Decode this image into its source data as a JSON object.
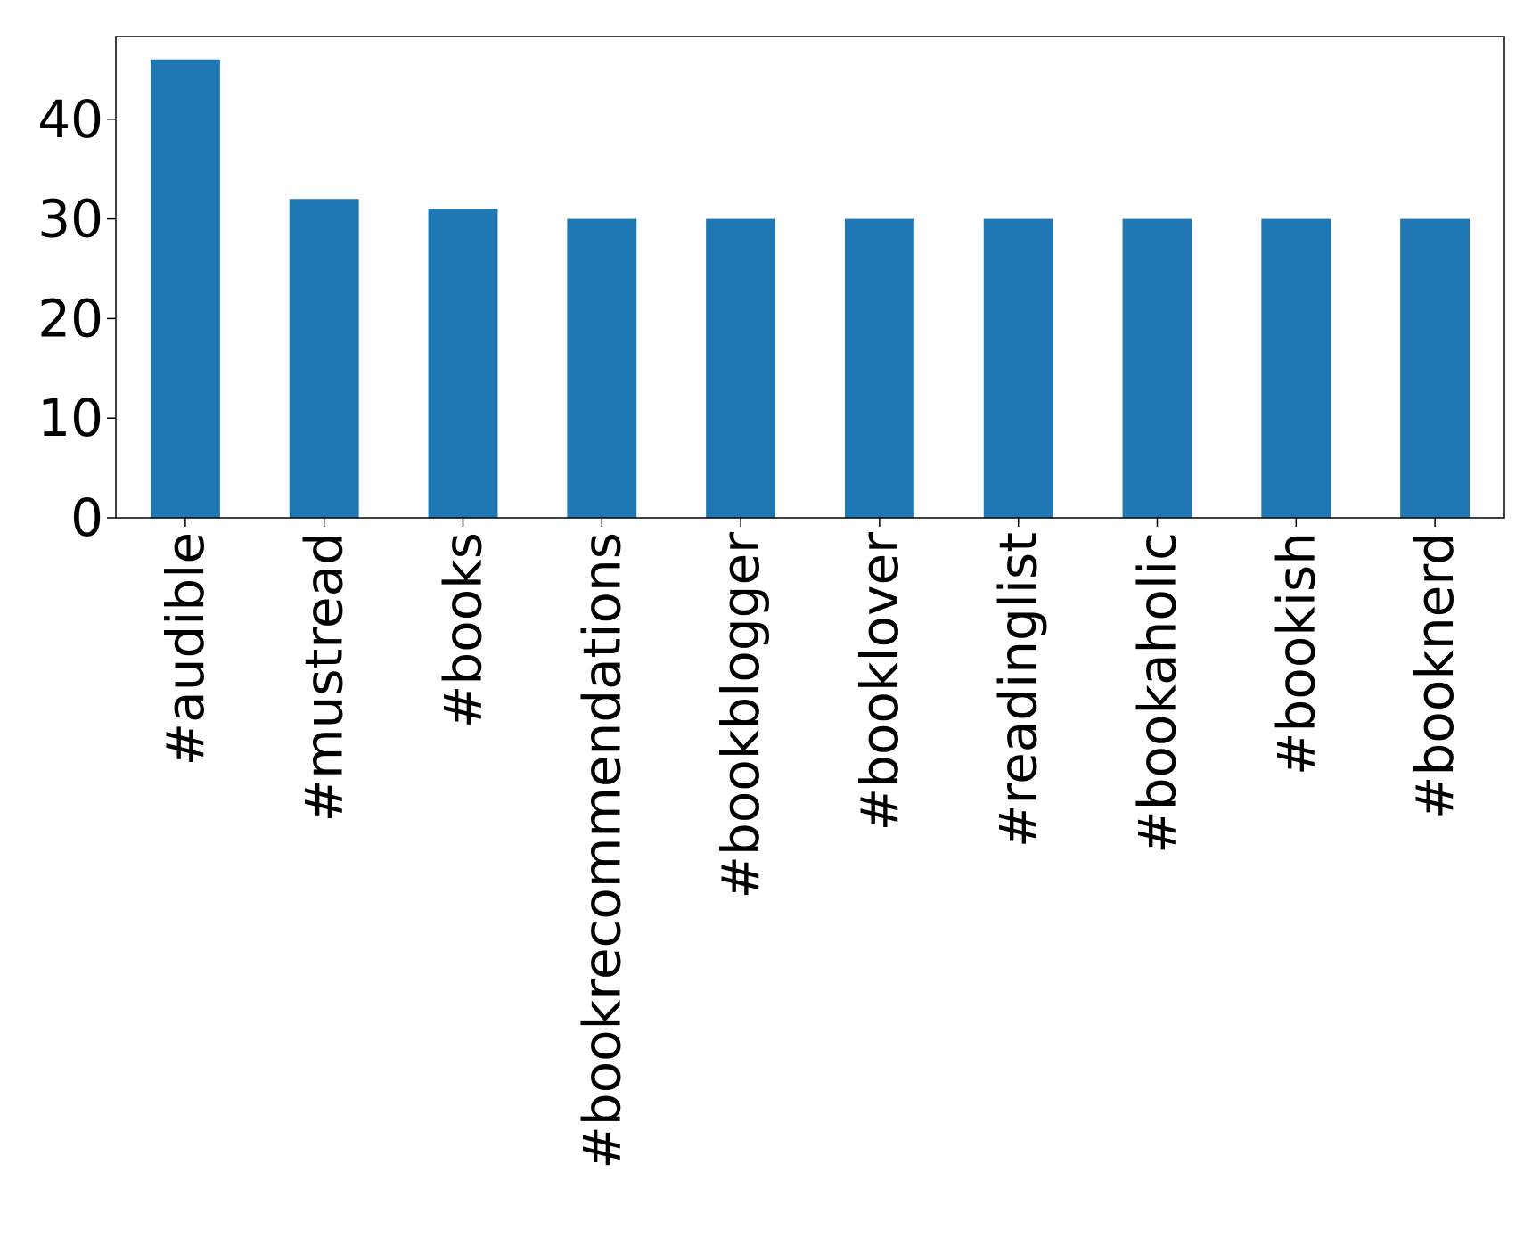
{
  "chart_data": {
    "type": "bar",
    "title": "",
    "xlabel": "",
    "ylabel": "",
    "categories": [
      "#audible",
      "#mustread",
      "#books",
      "#bookrecommendations",
      "#bookblogger",
      "#booklover",
      "#readinglist",
      "#bookaholic",
      "#bookish",
      "#booknerd"
    ],
    "values": [
      46,
      32,
      31,
      30,
      30,
      30,
      30,
      30,
      30,
      30
    ],
    "yticks": [
      0,
      10,
      20,
      30,
      40
    ],
    "ylim": [
      0,
      48.3
    ],
    "grid": false,
    "legend": "none",
    "colors": {
      "bar": "#1f77b4",
      "axis": "#000000",
      "background": "#ffffff"
    }
  }
}
